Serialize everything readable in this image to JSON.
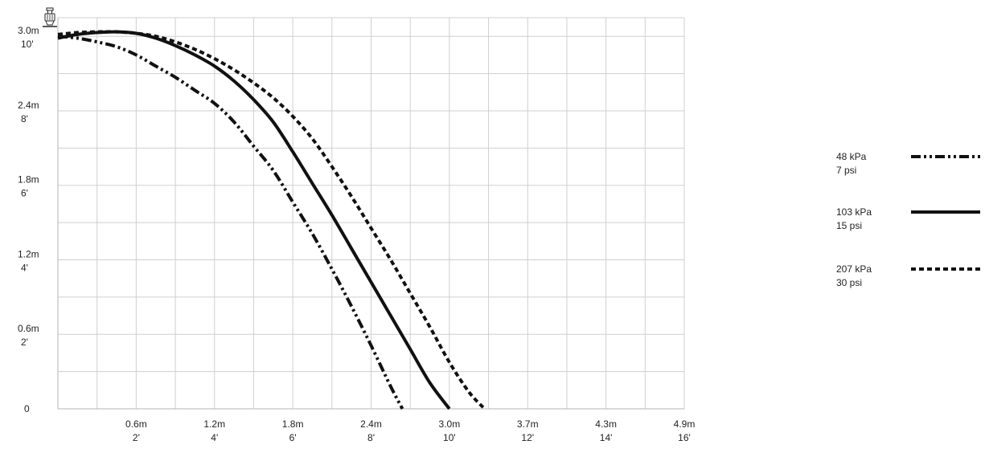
{
  "chart_data": {
    "type": "line",
    "title": "",
    "xlabel": "",
    "ylabel": "",
    "xlim": [
      0,
      16
    ],
    "ylim": [
      0,
      10
    ],
    "x_unit": "ft",
    "y_unit": "ft",
    "grid": true,
    "legend_position": "right",
    "x_ticks": [
      {
        "value": 2,
        "metric": "0.6m",
        "imperial": "2'"
      },
      {
        "value": 4,
        "metric": "1.2m",
        "imperial": "4'"
      },
      {
        "value": 6,
        "metric": "1.8m",
        "imperial": "6'"
      },
      {
        "value": 8,
        "metric": "2.4m",
        "imperial": "8'"
      },
      {
        "value": 10,
        "metric": "3.0m",
        "imperial": "10'"
      },
      {
        "value": 12,
        "metric": "3.7m",
        "imperial": "12'"
      },
      {
        "value": 14,
        "metric": "4.3m",
        "imperial": "14'"
      },
      {
        "value": 16,
        "metric": "4.9m",
        "imperial": "16'"
      }
    ],
    "y_ticks": [
      {
        "value": 0,
        "metric": "0",
        "imperial": ""
      },
      {
        "value": 2,
        "metric": "0.6m",
        "imperial": "2'"
      },
      {
        "value": 4,
        "metric": "1.2m",
        "imperial": "4'"
      },
      {
        "value": 6,
        "metric": "1.8m",
        "imperial": "6'"
      },
      {
        "value": 8,
        "metric": "2.4m",
        "imperial": "8'"
      },
      {
        "value": 10,
        "metric": "3.0m",
        "imperial": "10'"
      }
    ],
    "series": [
      {
        "name_line1": "48 kPa",
        "name_line2": "7 psi",
        "style": "dash-dot-dot",
        "color": "#111111",
        "x": [
          0,
          0.5,
          1,
          1.5,
          2,
          2.5,
          3,
          3.5,
          4,
          4.5,
          5,
          5.5,
          6,
          6.5,
          7,
          7.5,
          8,
          8.5,
          8.8
        ],
        "y": [
          10.0,
          9.95,
          9.85,
          9.72,
          9.5,
          9.2,
          8.9,
          8.55,
          8.2,
          7.7,
          7.05,
          6.4,
          5.55,
          4.7,
          3.75,
          2.75,
          1.7,
          0.6,
          0.0
        ]
      },
      {
        "name_line1": "103 kPa",
        "name_line2": "15 psi",
        "style": "solid",
        "color": "#111111",
        "x": [
          0,
          0.5,
          1,
          1.5,
          2,
          2.5,
          3,
          3.5,
          4,
          4.5,
          5,
          5.5,
          6,
          6.5,
          7,
          7.5,
          8,
          8.5,
          9,
          9.5,
          10.0
        ],
        "y": [
          9.95,
          10.05,
          10.1,
          10.12,
          10.08,
          9.95,
          9.75,
          9.5,
          9.2,
          8.8,
          8.3,
          7.7,
          6.9,
          6.05,
          5.2,
          4.3,
          3.4,
          2.5,
          1.6,
          0.7,
          0.0
        ]
      },
      {
        "name_line1": "207 kPa",
        "name_line2": "30 psi",
        "style": "dashed",
        "color": "#111111",
        "x": [
          0,
          0.5,
          1,
          1.5,
          2,
          2.5,
          3,
          3.5,
          4,
          4.5,
          5,
          5.5,
          6,
          6.5,
          7,
          7.5,
          8,
          8.5,
          9,
          9.5,
          10,
          10.5,
          10.9
        ],
        "y": [
          10.05,
          10.1,
          10.12,
          10.12,
          10.08,
          10.0,
          9.85,
          9.65,
          9.4,
          9.1,
          8.75,
          8.35,
          7.85,
          7.25,
          6.5,
          5.7,
          4.85,
          4.0,
          3.1,
          2.2,
          1.25,
          0.45,
          0.0
        ]
      }
    ]
  }
}
